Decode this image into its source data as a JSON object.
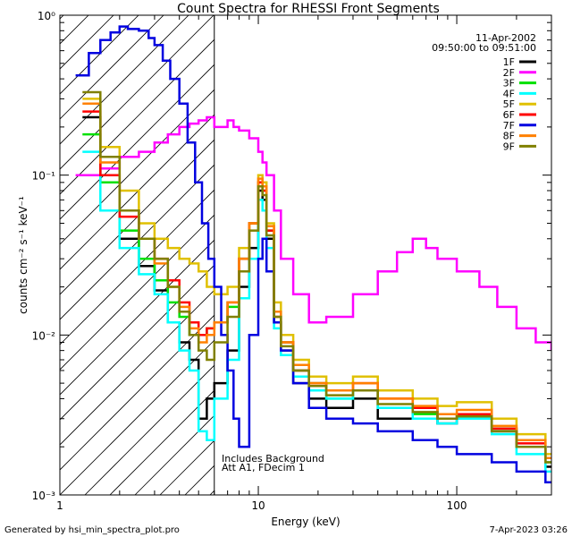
{
  "chart_data": {
    "type": "line",
    "title": "Count Spectra for RHESSI Front Segments",
    "xlabel": "Energy (keV)",
    "ylabel": "counts cm⁻² s⁻¹ keV⁻¹",
    "xscale": "log",
    "yscale": "log",
    "xlim": [
      1,
      300
    ],
    "ylim": [
      0.001,
      1
    ],
    "x_ticks": [
      {
        "value": 1,
        "label": "1"
      },
      {
        "value": 10,
        "label": "10"
      },
      {
        "value": 100,
        "label": "100"
      }
    ],
    "y_ticks": [
      {
        "value": 0.001,
        "label": "10⁻³"
      },
      {
        "value": 0.01,
        "label": "10⁻²"
      },
      {
        "value": 0.1,
        "label": "10⁻¹"
      },
      {
        "value": 1,
        "label": "10⁰"
      }
    ],
    "legend_position": "top-right",
    "date": "11-Apr-2002",
    "time_range": "09:50:00 to 09:51:00",
    "attenuator_threshold_keV": 6,
    "annotations": [
      "Includes Background",
      "Att A1, FDecim 1"
    ],
    "footer_left": "Generated by hsi_min_spectra_plot.pro",
    "footer_right": "7-Apr-2023 03:26",
    "series": [
      {
        "name": "1F",
        "color": "#000000",
        "x": [
          1.3,
          1.6,
          2.0,
          2.5,
          3.0,
          3.5,
          4.0,
          4.5,
          5.0,
          5.5,
          6.0,
          7.0,
          8.0,
          9.0,
          10.0,
          10.5,
          11.0,
          12.0,
          13.0,
          15.0,
          18.0,
          22.0,
          30.0,
          40.0,
          60.0,
          80.0,
          100.0,
          150.0,
          200.0,
          280.0
        ],
        "values": [
          0.23,
          0.09,
          0.04,
          0.027,
          0.019,
          0.012,
          0.009,
          0.007,
          0.003,
          0.004,
          0.005,
          0.008,
          0.02,
          0.035,
          0.08,
          0.07,
          0.04,
          0.012,
          0.008,
          0.005,
          0.004,
          0.0035,
          0.004,
          0.003,
          0.003,
          0.0028,
          0.003,
          0.0025,
          0.002,
          0.0015
        ]
      },
      {
        "name": "2F",
        "color": "#ff00ff",
        "x": [
          1.2,
          1.6,
          2.0,
          2.5,
          3.0,
          3.5,
          4.0,
          4.5,
          5.0,
          5.5,
          6.0,
          7.0,
          7.5,
          8.0,
          9.0,
          10.0,
          10.5,
          11.0,
          12.0,
          13.0,
          15.0,
          18.0,
          22.0,
          30.0,
          40.0,
          50.0,
          60.0,
          70.0,
          80.0,
          100.0,
          130.0,
          160.0,
          200.0,
          250.0,
          300.0
        ],
        "values": [
          0.1,
          0.11,
          0.13,
          0.14,
          0.16,
          0.18,
          0.2,
          0.21,
          0.22,
          0.23,
          0.2,
          0.22,
          0.2,
          0.19,
          0.17,
          0.14,
          0.12,
          0.1,
          0.06,
          0.03,
          0.018,
          0.012,
          0.013,
          0.018,
          0.025,
          0.033,
          0.04,
          0.035,
          0.03,
          0.025,
          0.02,
          0.015,
          0.011,
          0.009,
          0.008
        ]
      },
      {
        "name": "3F",
        "color": "#00e000",
        "x": [
          1.3,
          1.6,
          2.0,
          2.5,
          3.0,
          3.5,
          4.0,
          4.5,
          5.0,
          5.5,
          6.0,
          7.0,
          8.0,
          9.0,
          10.0,
          10.5,
          11.0,
          12.0,
          13.0,
          15.0,
          18.0,
          22.0,
          30.0,
          40.0,
          60.0,
          80.0,
          100.0,
          150.0,
          200.0,
          280.0
        ],
        "values": [
          0.18,
          0.09,
          0.045,
          0.03,
          0.022,
          0.016,
          0.013,
          0.01,
          0.01,
          0.011,
          0.012,
          0.015,
          0.03,
          0.05,
          0.09,
          0.08,
          0.045,
          0.014,
          0.009,
          0.006,
          0.005,
          0.004,
          0.0045,
          0.0035,
          0.0032,
          0.003,
          0.0032,
          0.0026,
          0.002,
          0.0016
        ]
      },
      {
        "name": "4F",
        "color": "#00ffff",
        "x": [
          1.3,
          1.6,
          2.0,
          2.5,
          3.0,
          3.5,
          4.0,
          4.5,
          5.0,
          5.5,
          6.0,
          7.0,
          8.0,
          9.0,
          10.0,
          10.5,
          11.0,
          12.0,
          13.0,
          15.0,
          18.0,
          22.0,
          30.0,
          40.0,
          60.0,
          80.0,
          100.0,
          150.0,
          200.0,
          280.0
        ],
        "values": [
          0.14,
          0.06,
          0.035,
          0.024,
          0.018,
          0.012,
          0.008,
          0.006,
          0.0025,
          0.0022,
          0.004,
          0.007,
          0.017,
          0.03,
          0.07,
          0.06,
          0.035,
          0.011,
          0.0075,
          0.0055,
          0.0045,
          0.004,
          0.0045,
          0.0035,
          0.003,
          0.0028,
          0.003,
          0.0024,
          0.0018,
          0.0014
        ]
      },
      {
        "name": "5F",
        "color": "#e0c000",
        "x": [
          1.3,
          1.6,
          2.0,
          2.5,
          3.0,
          3.5,
          4.0,
          4.5,
          5.0,
          5.5,
          6.0,
          7.0,
          8.0,
          9.0,
          10.0,
          10.5,
          11.0,
          12.0,
          13.0,
          15.0,
          18.0,
          22.0,
          30.0,
          40.0,
          60.0,
          80.0,
          100.0,
          150.0,
          200.0,
          280.0
        ],
        "values": [
          0.3,
          0.15,
          0.08,
          0.05,
          0.04,
          0.035,
          0.03,
          0.028,
          0.025,
          0.02,
          0.018,
          0.02,
          0.035,
          0.05,
          0.1,
          0.09,
          0.05,
          0.016,
          0.01,
          0.007,
          0.0055,
          0.005,
          0.0055,
          0.0045,
          0.004,
          0.0036,
          0.0038,
          0.003,
          0.0024,
          0.0018
        ]
      },
      {
        "name": "6F",
        "color": "#ff0000",
        "x": [
          1.3,
          1.6,
          2.0,
          2.5,
          3.0,
          3.5,
          4.0,
          4.5,
          5.0,
          5.5,
          6.0,
          7.0,
          8.0,
          9.0,
          10.0,
          10.5,
          11.0,
          12.0,
          13.0,
          15.0,
          18.0,
          22.0,
          30.0,
          40.0,
          60.0,
          80.0,
          100.0,
          150.0,
          200.0,
          280.0
        ],
        "values": [
          0.25,
          0.1,
          0.055,
          0.04,
          0.03,
          0.022,
          0.016,
          0.012,
          0.01,
          0.011,
          0.012,
          0.016,
          0.03,
          0.05,
          0.09,
          0.08,
          0.045,
          0.013,
          0.009,
          0.006,
          0.005,
          0.0045,
          0.005,
          0.004,
          0.0035,
          0.003,
          0.0032,
          0.0026,
          0.0021,
          0.0017
        ]
      },
      {
        "name": "7F",
        "color": "#0000e0",
        "x": [
          1.2,
          1.4,
          1.6,
          1.8,
          2.0,
          2.2,
          2.5,
          2.8,
          3.0,
          3.3,
          3.6,
          4.0,
          4.4,
          4.8,
          5.2,
          5.6,
          6.0,
          6.5,
          7.0,
          7.5,
          8.0,
          9.0,
          10.0,
          10.5,
          11.0,
          12.0,
          13.0,
          15.0,
          18.0,
          22.0,
          30.0,
          40.0,
          60.0,
          80.0,
          100.0,
          150.0,
          200.0,
          280.0
        ],
        "values": [
          0.42,
          0.58,
          0.7,
          0.78,
          0.85,
          0.82,
          0.8,
          0.72,
          0.65,
          0.52,
          0.4,
          0.28,
          0.16,
          0.09,
          0.05,
          0.03,
          0.02,
          0.01,
          0.006,
          0.003,
          0.002,
          0.01,
          0.03,
          0.04,
          0.025,
          0.012,
          0.008,
          0.005,
          0.0035,
          0.003,
          0.0028,
          0.0025,
          0.0022,
          0.002,
          0.0018,
          0.0016,
          0.0014,
          0.0012
        ]
      },
      {
        "name": "8F",
        "color": "#ff8000",
        "x": [
          1.3,
          1.6,
          2.0,
          2.5,
          3.0,
          3.5,
          4.0,
          4.5,
          5.0,
          5.5,
          6.0,
          7.0,
          8.0,
          9.0,
          10.0,
          10.5,
          11.0,
          12.0,
          13.0,
          15.0,
          18.0,
          22.0,
          30.0,
          40.0,
          60.0,
          80.0,
          100.0,
          150.0,
          200.0,
          280.0
        ],
        "values": [
          0.28,
          0.12,
          0.06,
          0.04,
          0.028,
          0.02,
          0.015,
          0.011,
          0.009,
          0.01,
          0.012,
          0.016,
          0.03,
          0.05,
          0.095,
          0.085,
          0.048,
          0.014,
          0.009,
          0.0065,
          0.005,
          0.0045,
          0.005,
          0.004,
          0.0036,
          0.0032,
          0.0034,
          0.0027,
          0.0022,
          0.0017
        ]
      },
      {
        "name": "9F",
        "color": "#808000",
        "x": [
          1.3,
          1.6,
          2.0,
          2.5,
          3.0,
          3.5,
          4.0,
          4.5,
          5.0,
          5.5,
          6.0,
          7.0,
          8.0,
          9.0,
          10.0,
          10.5,
          11.0,
          12.0,
          13.0,
          15.0,
          18.0,
          22.0,
          30.0,
          40.0,
          60.0,
          80.0,
          100.0,
          150.0,
          200.0,
          280.0
        ],
        "values": [
          0.33,
          0.13,
          0.06,
          0.04,
          0.03,
          0.02,
          0.014,
          0.01,
          0.008,
          0.007,
          0.009,
          0.013,
          0.025,
          0.045,
          0.085,
          0.075,
          0.042,
          0.013,
          0.0085,
          0.006,
          0.0048,
          0.0042,
          0.0045,
          0.0037,
          0.0033,
          0.003,
          0.0031,
          0.0025,
          0.002,
          0.0016
        ]
      }
    ]
  }
}
